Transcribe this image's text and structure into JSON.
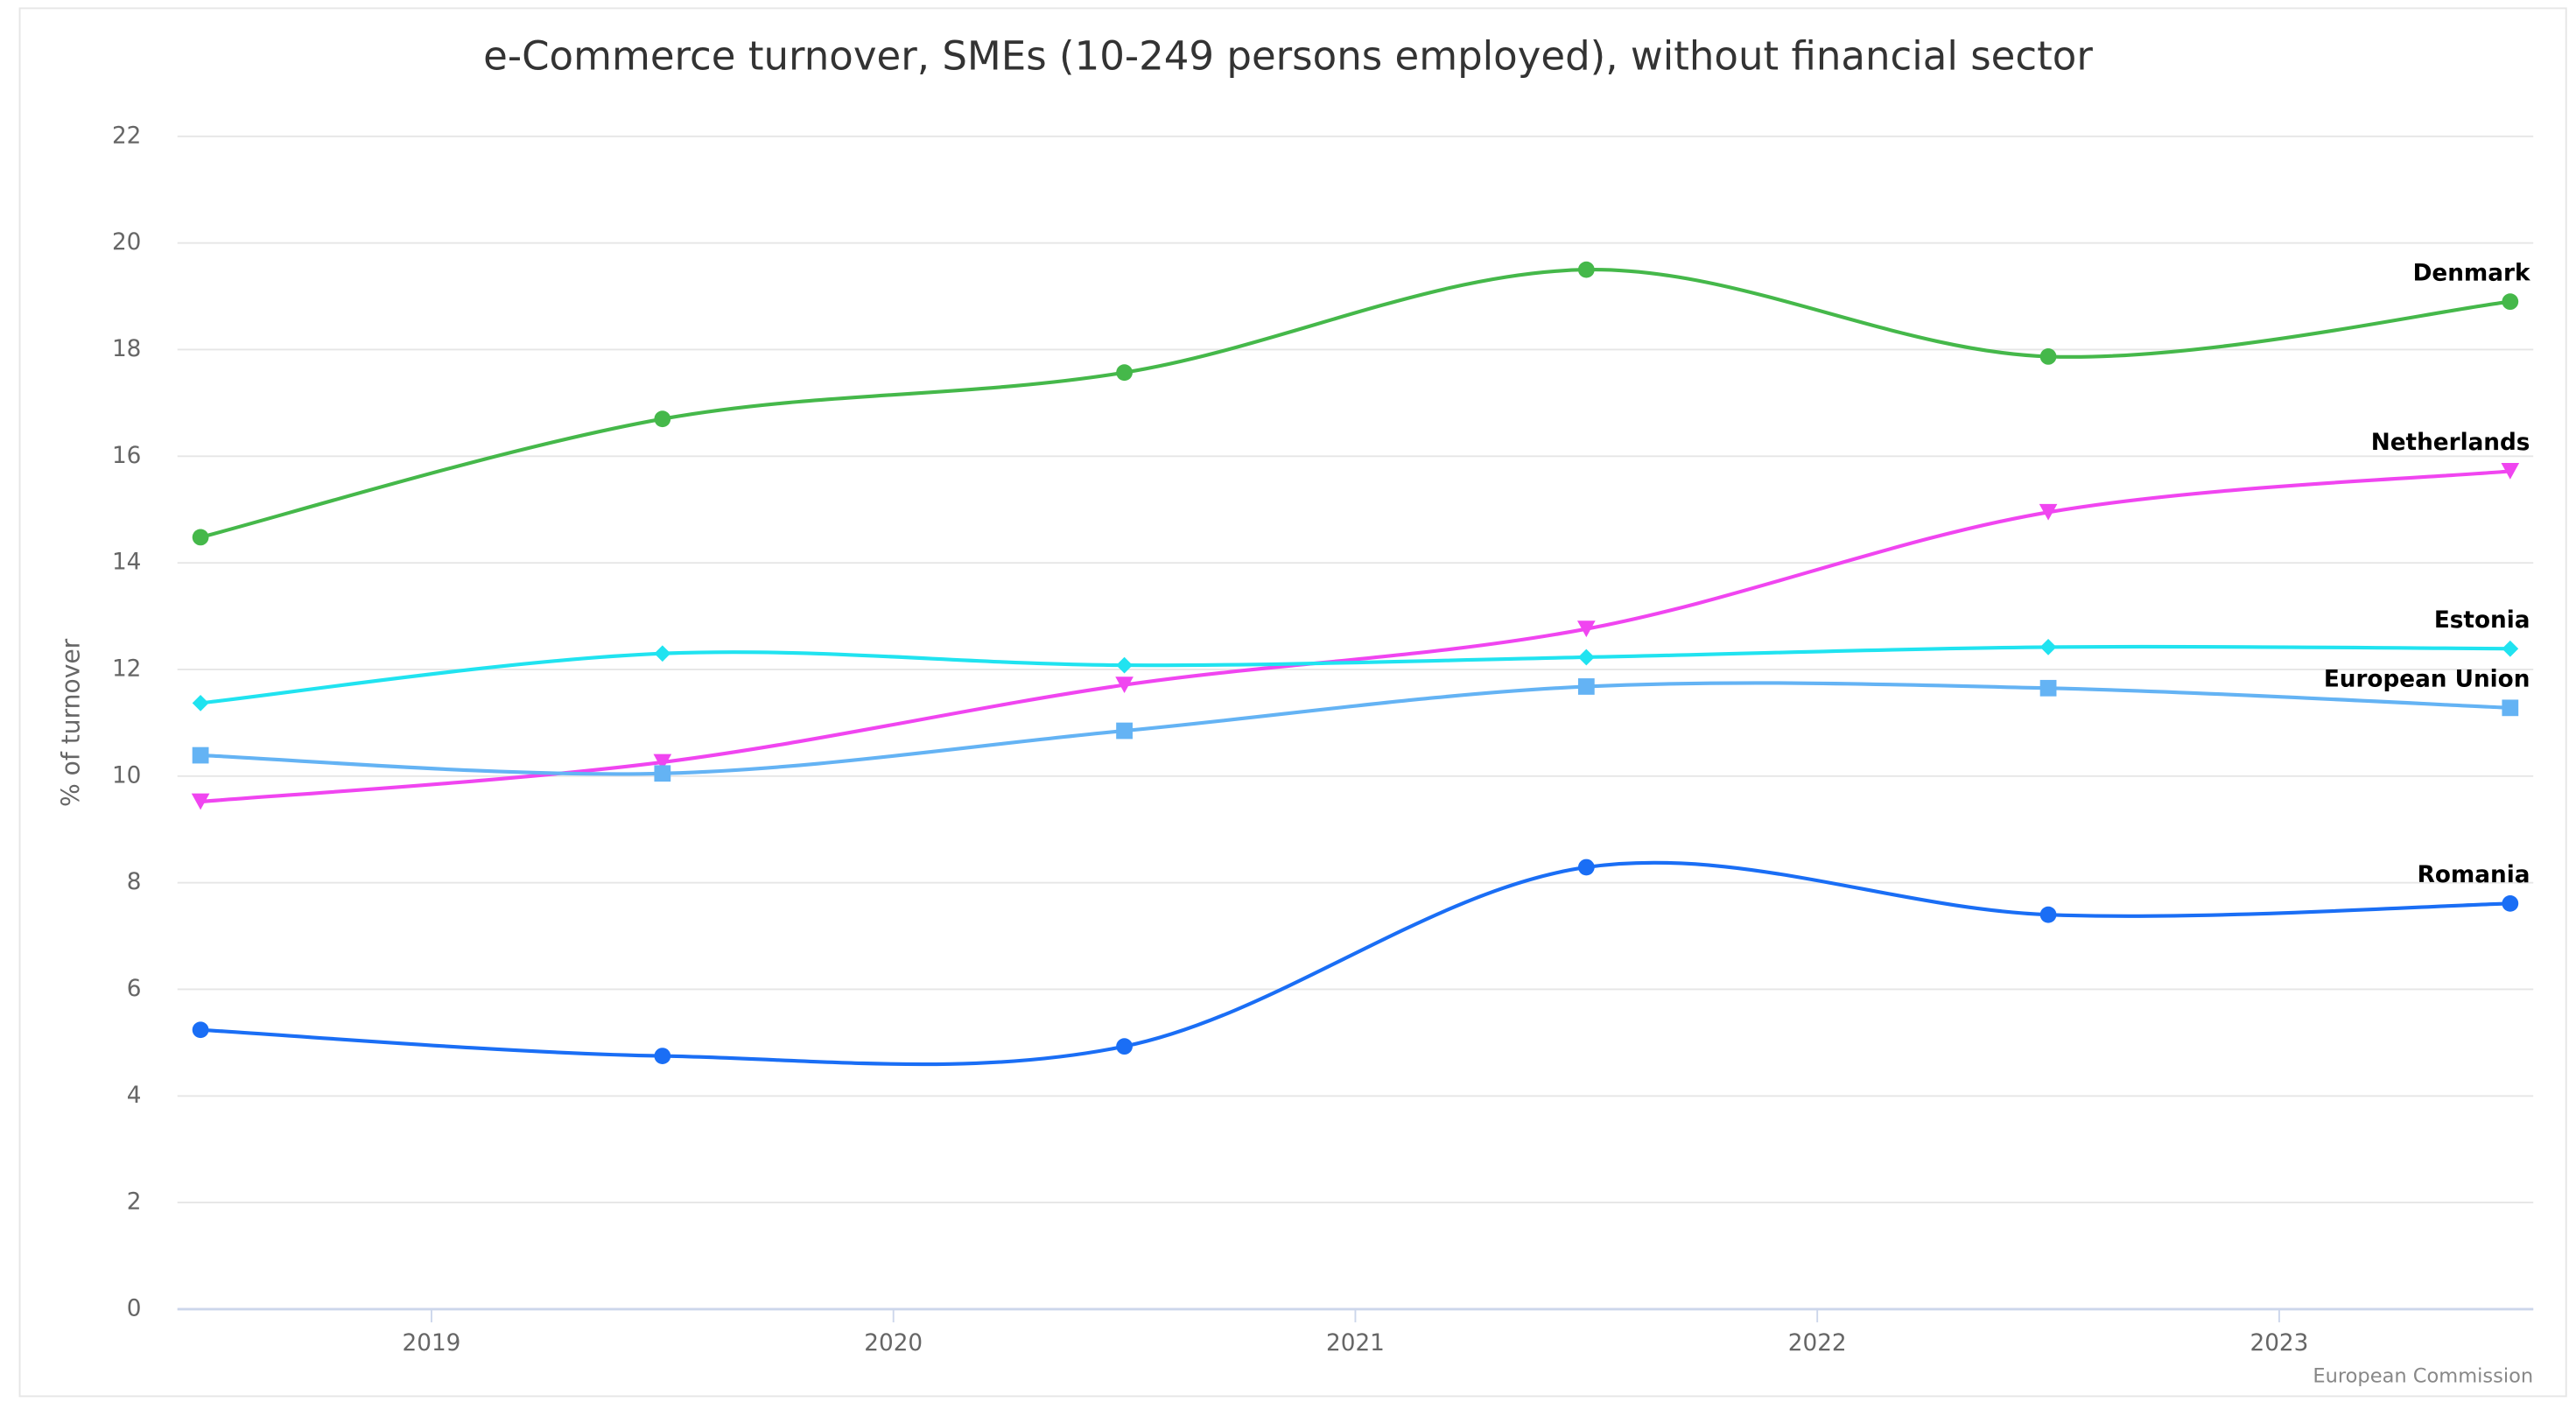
{
  "chart_data": {
    "type": "line",
    "title": "e-Commerce turnover, SMEs (10-249 persons employed), without financial sector",
    "y_label": "% of turnover",
    "credit": "European Commission",
    "x": [
      2018.5,
      2019.5,
      2020.5,
      2021.5,
      2022.5,
      2023.5
    ],
    "xlim": [
      2018.45,
      2023.55
    ],
    "xticks": [
      2019,
      2020,
      2021,
      2022,
      2023
    ],
    "ylim": [
      0,
      22
    ],
    "yticks": [
      0,
      2,
      4,
      6,
      8,
      10,
      12,
      14,
      16,
      18,
      20,
      22
    ],
    "grid": true,
    "series": [
      {
        "name": "Denmark",
        "color": "#45b84a",
        "marker": "circle",
        "values": [
          14.48,
          16.7,
          17.57,
          19.5,
          17.87,
          18.9
        ]
      },
      {
        "name": "Netherlands",
        "color": "#f045f0",
        "marker": "triangle-down",
        "values": [
          9.52,
          10.26,
          11.71,
          12.76,
          14.95,
          15.72
        ]
      },
      {
        "name": "Estonia",
        "color": "#20e3f0",
        "marker": "diamond",
        "values": [
          11.37,
          12.3,
          12.08,
          12.23,
          12.42,
          12.39
        ]
      },
      {
        "name": "European Union",
        "color": "#64b3f4",
        "marker": "square",
        "values": [
          10.39,
          10.05,
          10.85,
          11.68,
          11.65,
          11.28
        ]
      },
      {
        "name": "Romania",
        "color": "#1a6ef5",
        "marker": "circle",
        "values": [
          5.24,
          4.75,
          4.93,
          8.29,
          7.4,
          7.61
        ]
      }
    ]
  }
}
